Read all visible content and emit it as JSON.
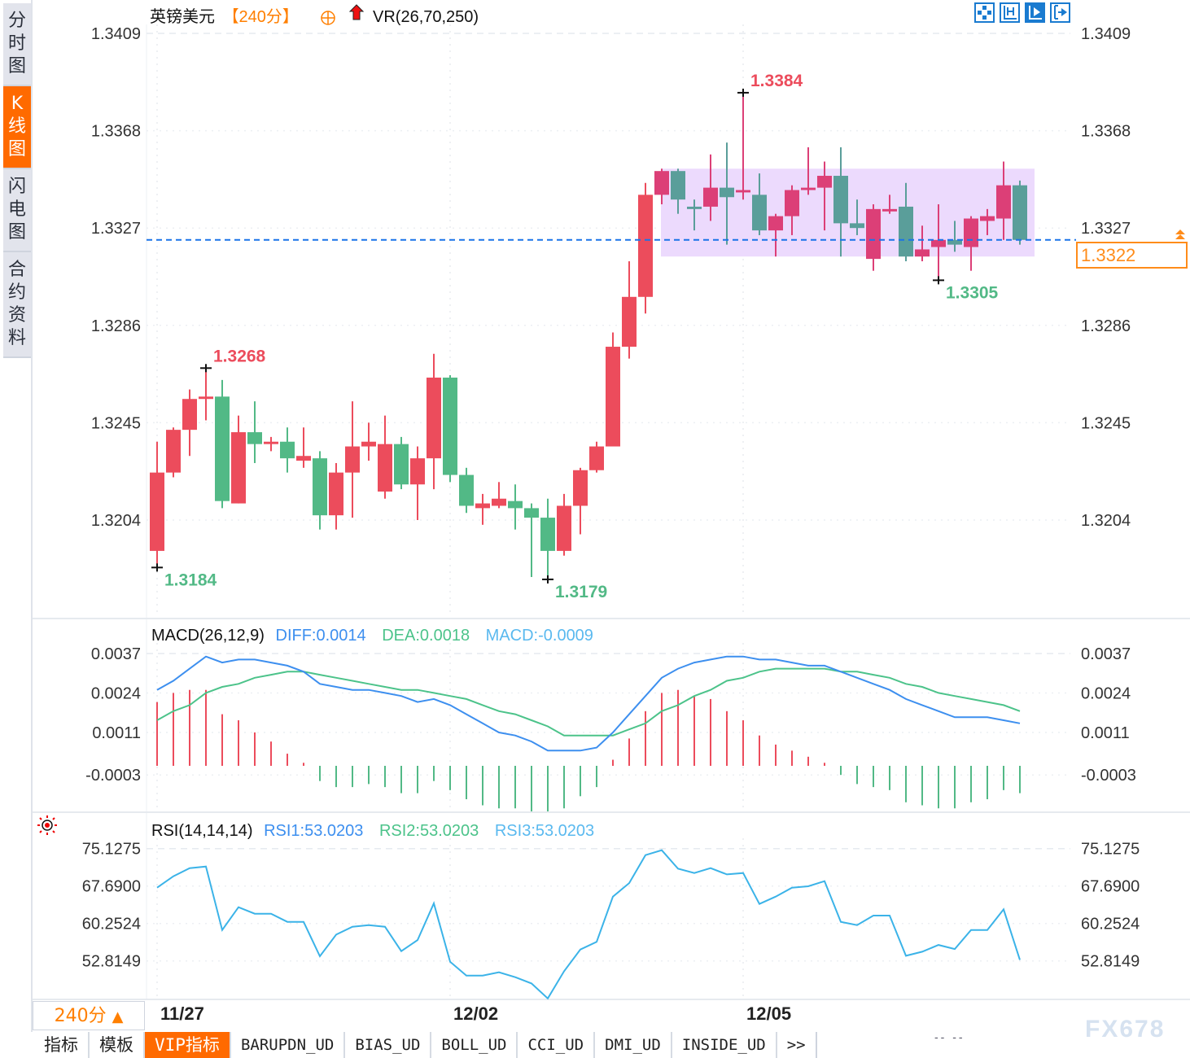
{
  "sidebar": {
    "items": [
      {
        "label": "分时图",
        "active": false
      },
      {
        "label": "K线图",
        "active": true
      },
      {
        "label": "闪电图",
        "active": false
      },
      {
        "label": "合约资料",
        "active": false
      }
    ]
  },
  "header": {
    "symbol": "英镑美元",
    "period": "【240分】",
    "indicator": "VR(26,70,250)",
    "icons": [
      "add-circle-icon",
      "red-up-arrow-icon"
    ]
  },
  "toolbar": {
    "icons": [
      "crosshair-icon",
      "zoom-range-icon",
      "play-forward-icon",
      "jump-latest-icon"
    ]
  },
  "current_price": "1.3322",
  "colors": {
    "up": "#ec4c5c",
    "down": "#52b986",
    "box_up": "#dc3f77",
    "box_down": "#5a9e9a",
    "box_fill": "#ecdafd",
    "price_line": "#1a73e8",
    "accent": "#ff6a00",
    "diff": "#3d8fef",
    "dea": "#4cc38a",
    "macd": "#5ab9ef",
    "rsi": "#3bb3e8"
  },
  "chart_data": [
    {
      "type": "candlestick",
      "yticks": [
        "1.3409",
        "1.3368",
        "1.3327",
        "1.3286",
        "1.3245",
        "1.3204"
      ],
      "ylim": [
        1.316,
        1.3409
      ],
      "x_labels": [
        {
          "label": "11/27",
          "index": 0
        },
        {
          "label": "12/02",
          "index": 18
        },
        {
          "label": "12/05",
          "index": 36
        }
      ],
      "ohlc": [
        [
          1.3191,
          1.3237,
          1.3184,
          1.3224
        ],
        [
          1.3224,
          1.3243,
          1.3222,
          1.3242
        ],
        [
          1.3242,
          1.3259,
          1.3231,
          1.3255
        ],
        [
          1.3255,
          1.3268,
          1.3246,
          1.3256
        ],
        [
          1.3256,
          1.3263,
          1.3209,
          1.3212
        ],
        [
          1.3211,
          1.3248,
          1.3211,
          1.3241
        ],
        [
          1.3241,
          1.3254,
          1.3228,
          1.3236
        ],
        [
          1.3236,
          1.3239,
          1.3233,
          1.3237
        ],
        [
          1.3237,
          1.3243,
          1.3224,
          1.323
        ],
        [
          1.3229,
          1.3243,
          1.3226,
          1.3231
        ],
        [
          1.323,
          1.3233,
          1.32,
          1.3206
        ],
        [
          1.3206,
          1.3228,
          1.32,
          1.3224
        ],
        [
          1.3224,
          1.3254,
          1.3205,
          1.3235
        ],
        [
          1.3235,
          1.3245,
          1.3229,
          1.3237
        ],
        [
          1.3216,
          1.3248,
          1.3213,
          1.3236
        ],
        [
          1.3236,
          1.3239,
          1.3217,
          1.3219
        ],
        [
          1.3219,
          1.3235,
          1.3204,
          1.323
        ],
        [
          1.323,
          1.3274,
          1.3217,
          1.3264
        ],
        [
          1.3264,
          1.3265,
          1.322,
          1.3223
        ],
        [
          1.3223,
          1.3226,
          1.3207,
          1.321
        ],
        [
          1.3209,
          1.3215,
          1.3202,
          1.3211
        ],
        [
          1.321,
          1.322,
          1.3209,
          1.3213
        ],
        [
          1.3212,
          1.3219,
          1.32,
          1.3209
        ],
        [
          1.3209,
          1.3211,
          1.318,
          1.3205
        ],
        [
          1.3205,
          1.3213,
          1.3179,
          1.3191
        ],
        [
          1.3191,
          1.3215,
          1.3189,
          1.321
        ],
        [
          1.321,
          1.3226,
          1.3198,
          1.3225
        ],
        [
          1.3225,
          1.3237,
          1.3224,
          1.3235
        ],
        [
          1.3235,
          1.3283,
          1.3235,
          1.3277
        ],
        [
          1.3277,
          1.3313,
          1.3272,
          1.3298
        ],
        [
          1.3298,
          1.3346,
          1.3291,
          1.3341
        ],
        [
          1.3341,
          1.3352,
          1.3337,
          1.3351
        ],
        [
          1.3351,
          1.3352,
          1.3333,
          1.3339
        ],
        [
          1.3336,
          1.3339,
          1.3326,
          1.3335
        ],
        [
          1.3336,
          1.3358,
          1.333,
          1.3344
        ],
        [
          1.3344,
          1.3363,
          1.332,
          1.334
        ],
        [
          1.3342,
          1.3384,
          1.3339,
          1.3343
        ],
        [
          1.3341,
          1.335,
          1.3324,
          1.3326
        ],
        [
          1.3326,
          1.3333,
          1.3315,
          1.3332
        ],
        [
          1.3332,
          1.3345,
          1.3324,
          1.3343
        ],
        [
          1.3343,
          1.3361,
          1.3341,
          1.3344
        ],
        [
          1.3344,
          1.3355,
          1.3326,
          1.3349
        ],
        [
          1.3349,
          1.3361,
          1.3315,
          1.3329
        ],
        [
          1.3329,
          1.3339,
          1.3324,
          1.3327
        ],
        [
          1.3314,
          1.3337,
          1.3309,
          1.3335
        ],
        [
          1.3334,
          1.3341,
          1.3333,
          1.3335
        ],
        [
          1.3336,
          1.3346,
          1.3313,
          1.3315
        ],
        [
          1.3315,
          1.3328,
          1.3313,
          1.3318
        ],
        [
          1.3319,
          1.3337,
          1.3305,
          1.3322
        ],
        [
          1.3322,
          1.333,
          1.3317,
          1.332
        ],
        [
          1.3319,
          1.3332,
          1.3309,
          1.3331
        ],
        [
          1.333,
          1.3335,
          1.3324,
          1.3332
        ],
        [
          1.3331,
          1.3355,
          1.3322,
          1.3345
        ],
        [
          1.3345,
          1.3347,
          1.332,
          1.3322
        ]
      ],
      "range_box": {
        "start_index": 31,
        "end_index": 53,
        "top": 1.3352,
        "bottom": 1.3315
      },
      "annotations": [
        {
          "label": "1.3268",
          "index": 3,
          "type": "high"
        },
        {
          "label": "1.3184",
          "index": 0,
          "type": "low"
        },
        {
          "label": "1.3179",
          "index": 24,
          "type": "low"
        },
        {
          "label": "1.3384",
          "index": 36,
          "type": "high"
        },
        {
          "label": "1.3305",
          "index": 48,
          "type": "low"
        }
      ]
    },
    {
      "type": "line+bar",
      "title": "MACD(26,12,9)",
      "legend": [
        {
          "label": "DIFF:0.0014"
        },
        {
          "label": "DEA:0.0018"
        },
        {
          "label": "MACD:-0.0009"
        }
      ],
      "yticks": [
        "0.0037",
        "0.0024",
        "0.0011",
        "-0.0003"
      ],
      "diff": [
        0.0025,
        0.0028,
        0.0032,
        0.0036,
        0.0034,
        0.0035,
        0.0035,
        0.0034,
        0.0033,
        0.0031,
        0.0027,
        0.0026,
        0.0025,
        0.0025,
        0.0024,
        0.0023,
        0.0021,
        0.0022,
        0.002,
        0.0017,
        0.0014,
        0.0011,
        0.001,
        0.0008,
        0.0005,
        0.0005,
        0.0005,
        0.0006,
        0.0011,
        0.0017,
        0.0023,
        0.0029,
        0.0032,
        0.0034,
        0.0035,
        0.0036,
        0.0036,
        0.0035,
        0.0035,
        0.0034,
        0.0033,
        0.0033,
        0.0031,
        0.0029,
        0.0027,
        0.0025,
        0.0022,
        0.002,
        0.0018,
        0.0016,
        0.0016,
        0.0016,
        0.0015,
        0.0014
      ],
      "dea": [
        0.0015,
        0.0018,
        0.002,
        0.0024,
        0.0026,
        0.0027,
        0.0029,
        0.003,
        0.0031,
        0.0031,
        0.003,
        0.0029,
        0.0028,
        0.0027,
        0.0026,
        0.0025,
        0.0025,
        0.0024,
        0.0023,
        0.0022,
        0.002,
        0.0018,
        0.0017,
        0.0015,
        0.0013,
        0.001,
        0.001,
        0.001,
        0.001,
        0.0012,
        0.0014,
        0.0018,
        0.002,
        0.0023,
        0.0025,
        0.0028,
        0.0029,
        0.0031,
        0.0032,
        0.0032,
        0.0032,
        0.0032,
        0.0031,
        0.0031,
        0.003,
        0.0029,
        0.0027,
        0.0026,
        0.0024,
        0.0023,
        0.0022,
        0.0021,
        0.002,
        0.0018
      ],
      "macd": [
        0.0021,
        0.0024,
        0.0025,
        0.0025,
        0.0017,
        0.0015,
        0.0011,
        0.0008,
        0.0004,
        0.0001,
        -0.0005,
        -0.0007,
        -0.0007,
        -0.0006,
        -0.0007,
        -0.0009,
        -0.0009,
        -0.0005,
        -0.0008,
        -0.0011,
        -0.0013,
        -0.0014,
        -0.0014,
        -0.0015,
        -0.0015,
        -0.0014,
        -0.001,
        -0.0007,
        0.0002,
        0.0009,
        0.0018,
        0.0024,
        0.0025,
        0.0023,
        0.0022,
        0.0018,
        0.0015,
        0.001,
        0.0007,
        0.0005,
        0.0003,
        0.0001,
        -0.0003,
        -0.0006,
        -0.0007,
        -0.0008,
        -0.0012,
        -0.0013,
        -0.0014,
        -0.0014,
        -0.0012,
        -0.0011,
        -0.0008,
        -0.0009
      ]
    },
    {
      "type": "line",
      "title": "RSI(14,14,14)",
      "legend": [
        {
          "label": "RSI1:53.0203"
        },
        {
          "label": "RSI2:53.0203"
        },
        {
          "label": "RSI3:53.0203"
        }
      ],
      "yticks": [
        "75.1275",
        "67.6900",
        "60.2524",
        "52.8149"
      ],
      "rsi": [
        67.37,
        69.63,
        71.25,
        71.57,
        58.96,
        63.49,
        62.19,
        62.19,
        60.58,
        60.58,
        53.73,
        58.04,
        59.61,
        59.93,
        59.61,
        54.75,
        56.96,
        64.24,
        52.65,
        49.9,
        49.9,
        50.55,
        49.58,
        48.34,
        45.37,
        50.76,
        55.08,
        56.6,
        65.59,
        68.28,
        73.83,
        74.8,
        71.14,
        70.28,
        71.25,
        70.01,
        70.28,
        64.13,
        65.59,
        67.37,
        67.64,
        68.66,
        60.58,
        59.93,
        61.82,
        61.82,
        53.84,
        54.64,
        55.99,
        55.18,
        58.96,
        58.96,
        63.05,
        53.02
      ]
    }
  ],
  "period_button": {
    "label": "240分",
    "icon": "triangle-up-icon"
  },
  "bottom_tabs": [
    "指标",
    "模板",
    "VIP指标",
    "BARUPDN_UD",
    "BIAS_UD",
    "BOLL_UD",
    "CCI_UD",
    "DMI_UD",
    "INSIDE_UD",
    ">>"
  ],
  "watermark": "FX678",
  "clock": "-- --"
}
